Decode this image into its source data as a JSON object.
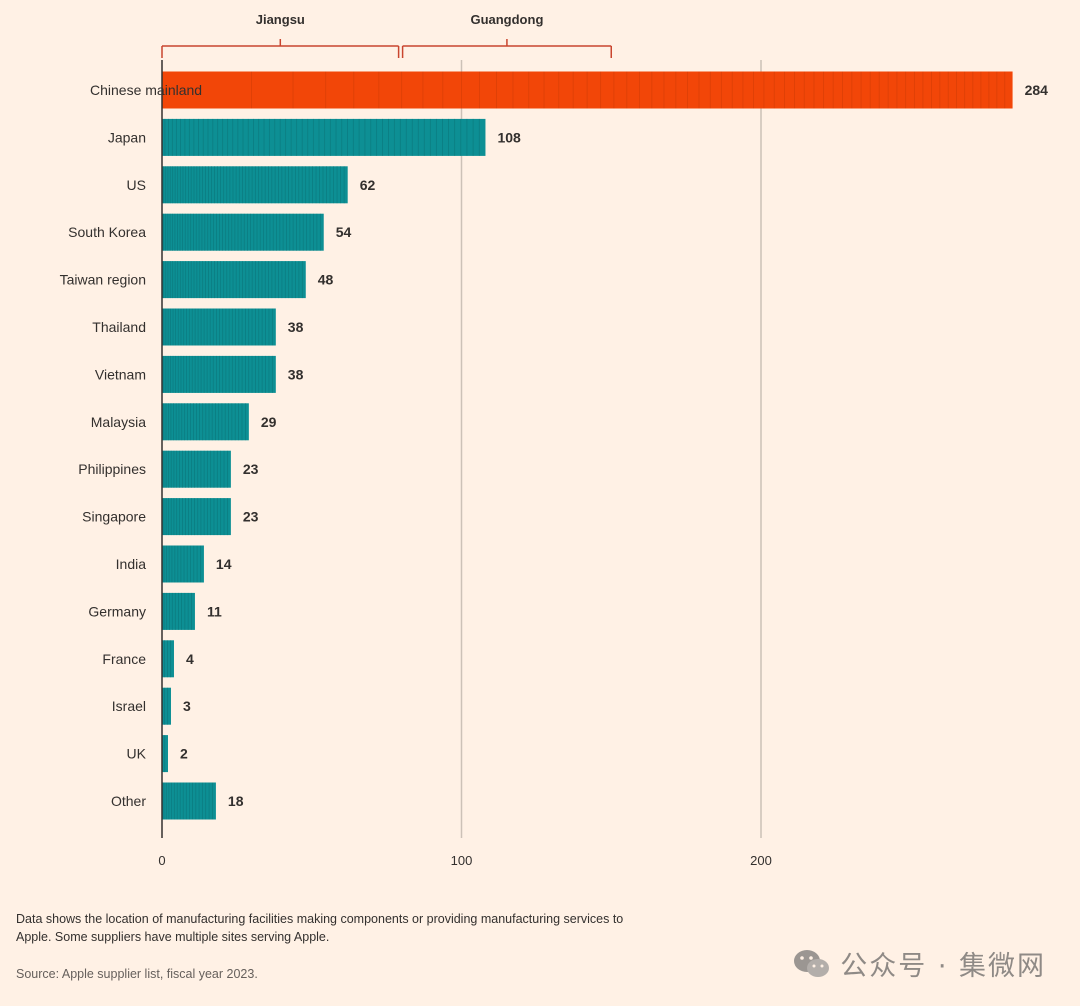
{
  "chart_data": {
    "type": "bar",
    "orientation": "horizontal",
    "categories": [
      "Chinese mainland",
      "Japan",
      "US",
      "South Korea",
      "Taiwan region",
      "Thailand",
      "Vietnam",
      "Malaysia",
      "Philippines",
      "Singapore",
      "India",
      "Germany",
      "France",
      "Israel",
      "UK",
      "Other"
    ],
    "values": [
      284,
      108,
      62,
      54,
      48,
      38,
      38,
      29,
      23,
      23,
      14,
      11,
      4,
      3,
      2,
      18
    ],
    "xlim": [
      0,
      284
    ],
    "xticks": [
      "0",
      "100",
      "200"
    ],
    "xtick_values": [
      0,
      100,
      200
    ],
    "grid": true,
    "colors": {
      "highlight": "#f24608",
      "bar": "#0d8f94",
      "bar_stripe": "#0a6f73",
      "background": "#fff1e5",
      "bracket": "#c9452e"
    },
    "group_annotations": [
      {
        "label": "Jiangsu",
        "start": 0,
        "end": 79
      },
      {
        "label": "Guangdong",
        "start": 80,
        "end": 150
      }
    ]
  },
  "footnote": "Data shows the location of manufacturing facilities making components or providing manufacturing services to Apple. Some suppliers have multiple sites serving Apple.",
  "source": "Source: Apple supplier list, fiscal year 2023.",
  "watermark": "公众号 · 集微网"
}
